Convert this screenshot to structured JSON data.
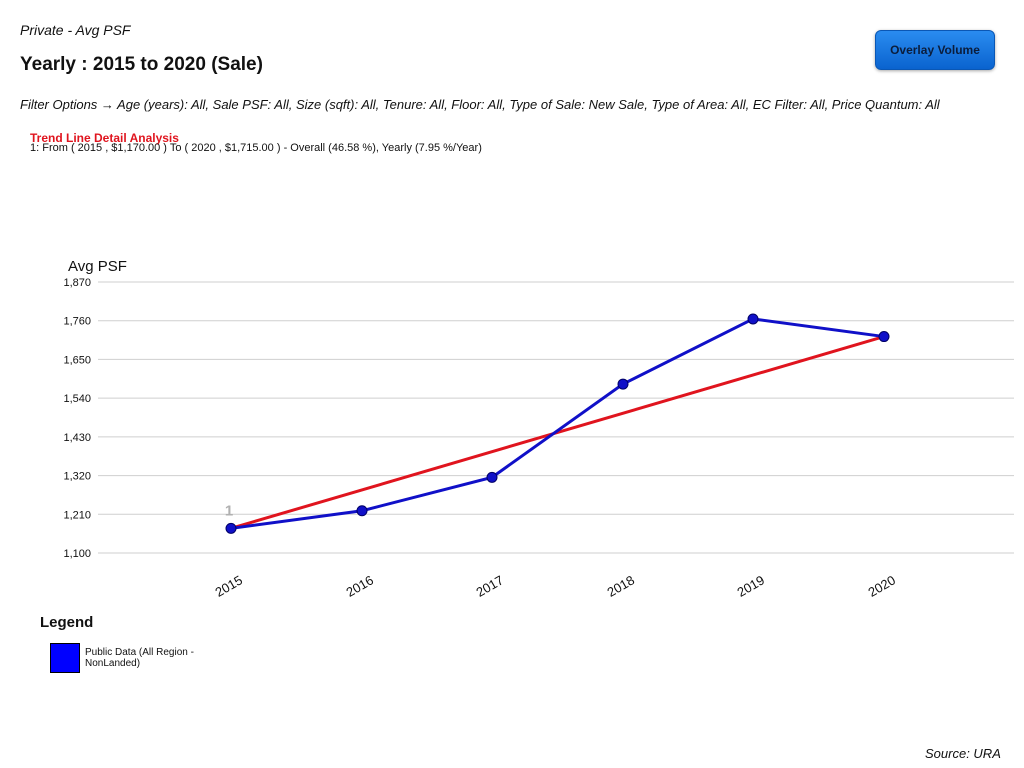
{
  "header": {
    "subtitle": "Private - Avg PSF",
    "title": "Yearly : 2015 to 2020 (Sale)",
    "filters": "Filter Options → Age (years): All, Sale PSF: All, Size (sqft): All, Tenure: All, Floor: All, Type of Sale: New Sale, Type of Area: All, EC Filter: All, Price Quantum: All",
    "overlay_button": "Overlay Volume"
  },
  "trend": {
    "heading": "Trend Line Detail Analysis",
    "detail": "1: From ( 2015 , $1,170.00 ) To ( 2020 , $1,715.00 ) - Overall (46.58 %), Yearly (7.95 %/Year)"
  },
  "legend": {
    "title": "Legend",
    "label": "Public Data (All Region - NonLanded)"
  },
  "footer": {
    "source": "Source: URA"
  },
  "chart_data": {
    "type": "line",
    "ylabel": "Avg PSF",
    "xlabel": "",
    "categories": [
      "2015",
      "2016",
      "2017",
      "2018",
      "2019",
      "2020"
    ],
    "ylim": [
      1100,
      1870
    ],
    "yticks": [
      "1,100",
      "1,210",
      "1,320",
      "1,430",
      "1,540",
      "1,650",
      "1,760",
      "1,870"
    ],
    "grid": true,
    "series": [
      {
        "name": "Public Data (All Region - NonLanded)",
        "color": "#1010c8",
        "values": [
          1170,
          1220,
          1315,
          1580,
          1765,
          1715
        ]
      }
    ],
    "trend_line": {
      "color": "#e0141e",
      "label": "1",
      "from": [
        2015,
        1170
      ],
      "to": [
        2020,
        1715
      ]
    }
  }
}
